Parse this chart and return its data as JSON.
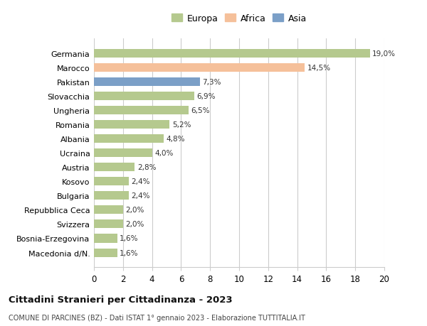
{
  "categories": [
    "Germania",
    "Marocco",
    "Pakistan",
    "Slovacchia",
    "Ungheria",
    "Romania",
    "Albania",
    "Ucraina",
    "Austria",
    "Kosovo",
    "Bulgaria",
    "Repubblica Ceca",
    "Svizzera",
    "Bosnia-Erzegovina",
    "Macedonia d/N."
  ],
  "values": [
    19.0,
    14.5,
    7.3,
    6.9,
    6.5,
    5.2,
    4.8,
    4.0,
    2.8,
    2.4,
    2.4,
    2.0,
    2.0,
    1.6,
    1.6
  ],
  "labels": [
    "19,0%",
    "14,5%",
    "7,3%",
    "6,9%",
    "6,5%",
    "5,2%",
    "4,8%",
    "4,0%",
    "2,8%",
    "2,4%",
    "2,4%",
    "2,0%",
    "2,0%",
    "1,6%",
    "1,6%"
  ],
  "colors": [
    "#b5c98e",
    "#f5c09a",
    "#7b9fc7",
    "#b5c98e",
    "#b5c98e",
    "#b5c98e",
    "#b5c98e",
    "#b5c98e",
    "#b5c98e",
    "#b5c98e",
    "#b5c98e",
    "#b5c98e",
    "#b5c98e",
    "#b5c98e",
    "#b5c98e"
  ],
  "legend": [
    {
      "label": "Europa",
      "color": "#b5c98e"
    },
    {
      "label": "Africa",
      "color": "#f5c09a"
    },
    {
      "label": "Asia",
      "color": "#7b9fc7"
    }
  ],
  "xlim": [
    0,
    20
  ],
  "xticks": [
    0,
    2,
    4,
    6,
    8,
    10,
    12,
    14,
    16,
    18,
    20
  ],
  "title": "Cittadini Stranieri per Cittadinanza - 2023",
  "subtitle": "COMUNE DI PARCINES (BZ) - Dati ISTAT 1° gennaio 2023 - Elaborazione TUTTITALIA.IT",
  "background_color": "#ffffff",
  "grid_color": "#cccccc"
}
